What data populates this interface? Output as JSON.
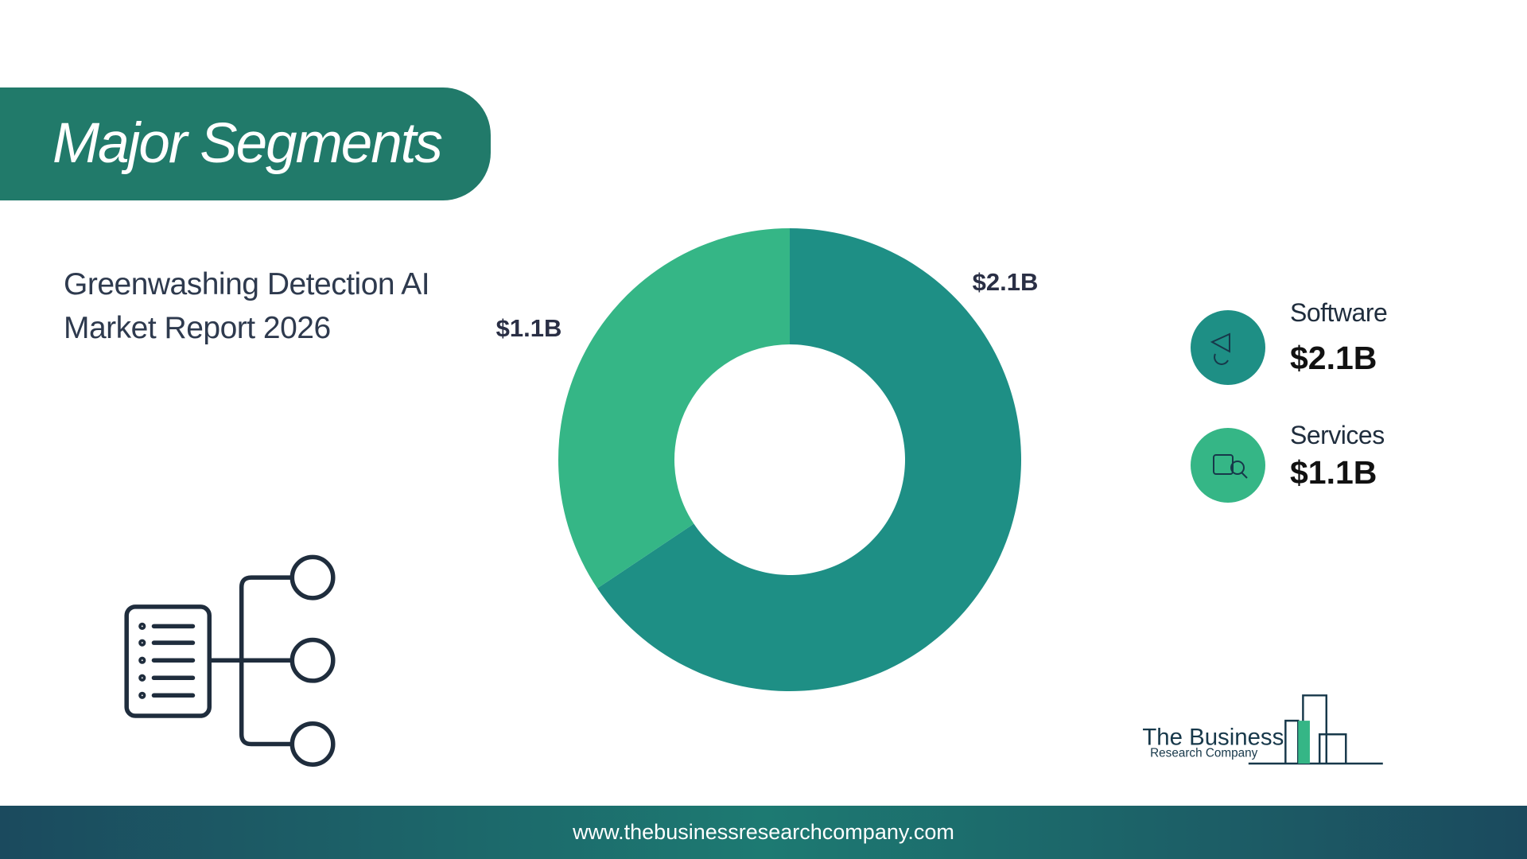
{
  "header": {
    "title": "Major Segments"
  },
  "subtitle": "Greenwashing Detection AI Market Report 2026",
  "chart_data": {
    "type": "donut",
    "categories": [
      "Software",
      "Services"
    ],
    "values": [
      2.1,
      1.1
    ],
    "value_labels": [
      "$2.1B",
      "$1.1B"
    ],
    "colors": [
      "#1e8f85",
      "#35b686"
    ]
  },
  "logo": {
    "line1": "The Business",
    "line2": "Research Company"
  },
  "footer": {
    "url": "www.thebusinessresearchcompany.com"
  }
}
